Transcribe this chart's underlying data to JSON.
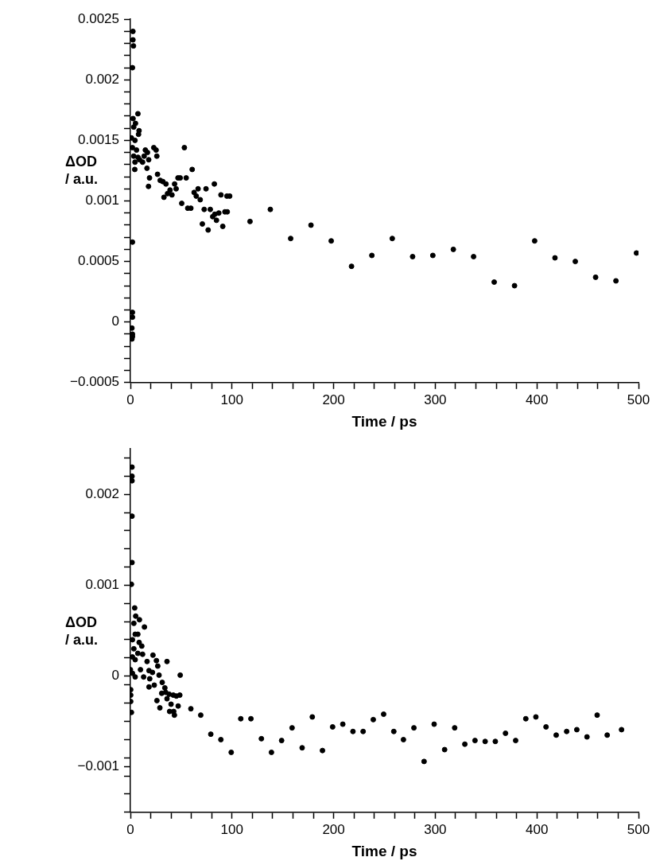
{
  "chart_data": [
    {
      "type": "scatter",
      "xlabel": "Time / ps",
      "ylabel": "ΔOD\n/ a.u.",
      "marker": "circle",
      "xlim": [
        0,
        500
      ],
      "xticks": [
        0,
        {
          "value": 20,
          "label": null
        },
        {
          "value": 40,
          "label": null
        },
        {
          "value": 60,
          "label": null
        },
        {
          "value": 80,
          "label": null
        },
        100,
        {
          "value": 120,
          "label": null
        },
        {
          "value": 140,
          "label": null
        },
        {
          "value": 160,
          "label": null
        },
        {
          "value": 180,
          "label": null
        },
        200,
        {
          "value": 220,
          "label": null
        },
        {
          "value": 240,
          "label": null
        },
        {
          "value": 260,
          "label": null
        },
        {
          "value": 280,
          "label": null
        },
        300,
        {
          "value": 320,
          "label": null
        },
        {
          "value": 340,
          "label": null
        },
        {
          "value": 360,
          "label": null
        },
        {
          "value": 380,
          "label": null
        },
        400,
        {
          "value": 420,
          "label": null
        },
        {
          "value": 440,
          "label": null
        },
        {
          "value": 460,
          "label": null
        },
        {
          "value": 480,
          "label": null
        },
        500
      ],
      "ylim": [
        -0.0005,
        0.0025
      ],
      "yticks": [
        {
          "value": -0.0005,
          "label": "−0.0005"
        },
        {
          "value": -0.0004,
          "label": null
        },
        {
          "value": -0.0003,
          "label": null
        },
        {
          "value": -0.0002,
          "label": null
        },
        {
          "value": -0.0001,
          "label": null
        },
        0,
        {
          "value": 0.0001,
          "label": null
        },
        {
          "value": 0.0002,
          "label": null
        },
        {
          "value": 0.0003,
          "label": null
        },
        {
          "value": 0.0004,
          "label": null
        },
        0.0005,
        {
          "value": 0.0006,
          "label": null
        },
        {
          "value": 0.0007,
          "label": null
        },
        {
          "value": 0.0008,
          "label": null
        },
        {
          "value": 0.0009,
          "label": null
        },
        0.001,
        {
          "value": 0.0011,
          "label": null
        },
        {
          "value": 0.0012,
          "label": null
        },
        {
          "value": 0.0013,
          "label": null
        },
        {
          "value": 0.0014,
          "label": null
        },
        0.0015,
        {
          "value": 0.0016,
          "label": null
        },
        {
          "value": 0.0017,
          "label": null
        },
        {
          "value": 0.0018,
          "label": null
        },
        {
          "value": 0.0019,
          "label": null
        },
        0.002,
        {
          "value": 0.0021,
          "label": null
        },
        {
          "value": 0.0022,
          "label": null
        },
        {
          "value": 0.0023,
          "label": null
        },
        {
          "value": 0.0024,
          "label": null
        },
        0.0025
      ],
      "series": [
        {
          "color": "#000000",
          "x": [
            2.5,
            2.5,
            3,
            2,
            2,
            2,
            2,
            1.5,
            2,
            1.5,
            2,
            7.4,
            2.6,
            5,
            3.3,
            8.5,
            1,
            4.5,
            8,
            2,
            6,
            3.3,
            7.5,
            4.5,
            9,
            4.3,
            12,
            14.7,
            16.8,
            18,
            13.5,
            16.3,
            23,
            25.3,
            26,
            18.8,
            17.8,
            26.7,
            29.3,
            31.9,
            35,
            33,
            36.5,
            39,
            40.9,
            43.5,
            45,
            46.8,
            49,
            53.1,
            50.5,
            54.9,
            56.4,
            59.5,
            60.8,
            62.7,
            64.8,
            66.6,
            68.7,
            70.8,
            72.6,
            74.4,
            76.5,
            78.6,
            81,
            83,
            82.6,
            84.7,
            87,
            89.1,
            90.9,
            93,
            95,
            97.7,
            95.3,
            117.7,
            137.7,
            157.7,
            177.7,
            197.6,
            217.6,
            237.6,
            257.7,
            277.7,
            297.6,
            317.8,
            337.7,
            358,
            378,
            397.8,
            417.8,
            437.8,
            457.8,
            477.8,
            498
          ],
          "values": [
            0.0024,
            0.00233,
            0.00228,
            0.0021,
            0.00066,
            8e-05,
            4e-05,
            -5e-05,
            -0.0001,
            -0.00014,
            -0.00012,
            0.00172,
            0.00168,
            0.00164,
            0.00161,
            0.00158,
            0.00152,
            0.0015,
            0.00155,
            0.00144,
            0.00142,
            0.00137,
            0.00136,
            0.00132,
            0.00134,
            0.00126,
            0.00132,
            0.00142,
            0.0014,
            0.00134,
            0.00137,
            0.00127,
            0.00144,
            0.00142,
            0.00137,
            0.00119,
            0.00112,
            0.00122,
            0.00117,
            0.00116,
            0.00114,
            0.00103,
            0.00106,
            0.00109,
            0.00105,
            0.00114,
            0.0011,
            0.00119,
            0.00119,
            0.00144,
            0.00098,
            0.00119,
            0.00094,
            0.00094,
            0.00126,
            0.00107,
            0.00104,
            0.0011,
            0.00101,
            0.00081,
            0.00093,
            0.0011,
            0.00076,
            0.00093,
            0.00087,
            0.00089,
            0.00114,
            0.00084,
            0.0009,
            0.00105,
            0.00079,
            0.00091,
            0.00104,
            0.00104,
            0.00091,
            0.00083,
            0.00093,
            0.00069,
            0.0008,
            0.00067,
            0.00046,
            0.00055,
            0.00069,
            0.00054,
            0.00055,
            0.0006,
            0.00054,
            0.00033,
            0.0003,
            0.00067,
            0.00053,
            0.0005,
            0.00037,
            0.00034,
            0.00057
          ]
        }
      ]
    },
    {
      "type": "scatter",
      "xlabel": "Time / ps",
      "ylabel": "ΔOD\n/ a.u.",
      "marker": "circle",
      "xlim": [
        0,
        500
      ],
      "xticks": [
        0,
        {
          "value": 20,
          "label": null
        },
        {
          "value": 40,
          "label": null
        },
        {
          "value": 60,
          "label": null
        },
        {
          "value": 80,
          "label": null
        },
        100,
        {
          "value": 120,
          "label": null
        },
        {
          "value": 140,
          "label": null
        },
        {
          "value": 160,
          "label": null
        },
        {
          "value": 180,
          "label": null
        },
        200,
        {
          "value": 220,
          "label": null
        },
        {
          "value": 240,
          "label": null
        },
        {
          "value": 260,
          "label": null
        },
        {
          "value": 280,
          "label": null
        },
        300,
        {
          "value": 320,
          "label": null
        },
        {
          "value": 340,
          "label": null
        },
        {
          "value": 360,
          "label": null
        },
        {
          "value": 380,
          "label": null
        },
        400,
        {
          "value": 420,
          "label": null
        },
        {
          "value": 440,
          "label": null
        },
        {
          "value": 460,
          "label": null
        },
        {
          "value": 480,
          "label": null
        },
        500
      ],
      "ylim": [
        -0.0015,
        0.0025
      ],
      "yticks": [
        {
          "value": -0.0015,
          "label": null
        },
        {
          "value": -0.0013,
          "label": null
        },
        {
          "value": -0.0011,
          "label": null
        },
        {
          "value": -0.001,
          "label": "−0.001"
        },
        {
          "value": -0.0009,
          "label": null
        },
        {
          "value": -0.0007,
          "label": null
        },
        {
          "value": -0.0005,
          "label": null
        },
        {
          "value": -0.0003,
          "label": null
        },
        {
          "value": -0.0001,
          "label": null
        },
        0,
        {
          "value": 0.0002,
          "label": null
        },
        {
          "value": 0.0004,
          "label": null
        },
        {
          "value": 0.0006,
          "label": null
        },
        {
          "value": 0.0008,
          "label": null
        },
        0.001,
        {
          "value": 0.0012,
          "label": null
        },
        {
          "value": 0.0014,
          "label": null
        },
        {
          "value": 0.0016,
          "label": null
        },
        {
          "value": 0.0018,
          "label": null
        },
        0.002,
        {
          "value": 0.0022,
          "label": null
        },
        {
          "value": 0.0024,
          "label": null
        }
      ],
      "series": [
        {
          "color": "#000000",
          "x": [
            1.6,
            1.6,
            1.6,
            1.6,
            1.6,
            1,
            4.2,
            5.2,
            8.9,
            3.4,
            13.8,
            4.7,
            7.3,
            2,
            8.6,
            11.2,
            3.4,
            7.3,
            12,
            2,
            4.7,
            22.2,
            16.4,
            25.6,
            36,
            26.9,
            0,
            9.9,
            2,
            18.3,
            21.7,
            4.7,
            13,
            19,
            28.2,
            49,
            18.3,
            23.5,
            31.3,
            33.9,
            30.8,
            26.1,
            34.7,
            38.1,
            42.2,
            45.2,
            48.6,
            36,
            40,
            47,
            29,
            38.6,
            42.6,
            43.3,
            59.5,
            69.2,
            79.1,
            89,
            99.2,
            0.3,
            0.3,
            0.3,
            1,
            108.6,
            118.6,
            128.9,
            138.8,
            148.8,
            159.1,
            169,
            179,
            189,
            199,
            209,
            219,
            229,
            239,
            249.2,
            259.2,
            268.7,
            279,
            289,
            298.9,
            309.2,
            319.1,
            329.1,
            339.1,
            349.1,
            359.1,
            369.1,
            379.1,
            389.1,
            399,
            409,
            419,
            429.3,
            439.3,
            449.3,
            459.3,
            469.2,
            483.3
          ],
          "values": [
            0.0023,
            0.0022,
            0.00215,
            0.00176,
            0.00125,
            0.00101,
            0.00075,
            0.00066,
            0.00062,
            0.00058,
            0.00054,
            0.00046,
            0.00046,
            0.0004,
            0.00037,
            0.00033,
            0.0003,
            0.00025,
            0.00024,
            0.00021,
            0.00018,
            0.00023,
            0.00016,
            0.00017,
            0.00016,
            0.00011,
            7e-05,
            7e-05,
            3e-05,
            6e-05,
            4e-05,
            -1e-05,
            -1e-05,
            -3e-05,
            1e-05,
            1e-05,
            -0.00012,
            -0.0001,
            -7e-05,
            -0.00013,
            -0.00019,
            -0.00027,
            -0.00018,
            -0.0002,
            -0.00021,
            -0.00022,
            -0.00021,
            -0.00025,
            -0.00031,
            -0.00033,
            -0.00035,
            -0.00039,
            -0.00039,
            -0.00043,
            -0.00036,
            -0.00043,
            -0.00064,
            -0.0007,
            -0.00084,
            -0.00015,
            -0.00021,
            -0.00028,
            -0.0004,
            -0.00047,
            -0.00047,
            -0.00069,
            -0.00084,
            -0.00071,
            -0.00057,
            -0.00079,
            -0.00045,
            -0.00082,
            -0.00056,
            -0.00053,
            -0.00061,
            -0.00061,
            -0.00048,
            -0.00042,
            -0.00061,
            -0.0007,
            -0.00057,
            -0.00094,
            -0.00053,
            -0.00081,
            -0.00057,
            -0.00075,
            -0.00071,
            -0.00072,
            -0.00072,
            -0.00063,
            -0.00071,
            -0.00047,
            -0.00045,
            -0.00056,
            -0.00065,
            -0.00061,
            -0.00059,
            -0.00067,
            -0.00043,
            -0.00065,
            -0.00059
          ]
        }
      ]
    }
  ]
}
